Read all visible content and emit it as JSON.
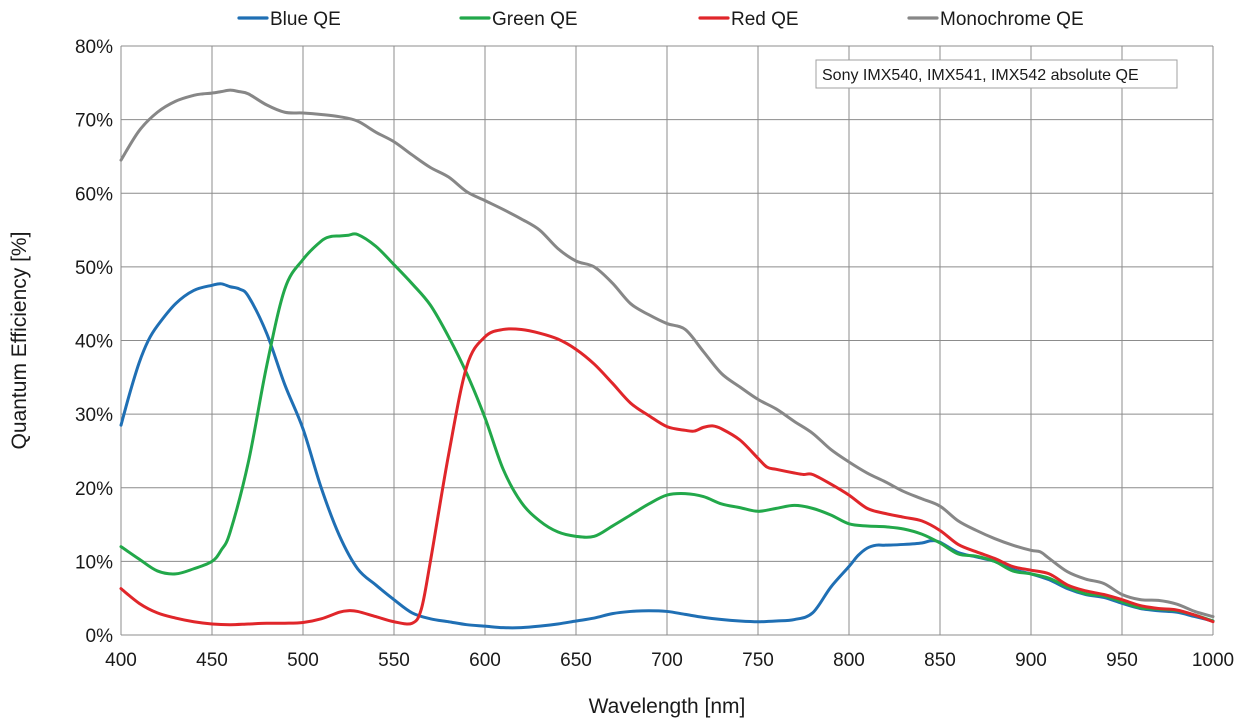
{
  "chart_data": {
    "type": "line",
    "title": "",
    "xlabel": "Wavelength [nm]",
    "ylabel": "Quantum Efficiency [%]",
    "xlim": [
      400,
      1000
    ],
    "ylim": [
      0,
      80
    ],
    "xticks": [
      400,
      450,
      500,
      550,
      600,
      650,
      700,
      750,
      800,
      850,
      900,
      950,
      1000
    ],
    "yticks": [
      0,
      10,
      20,
      30,
      40,
      50,
      60,
      70,
      80
    ],
    "ytick_suffix": "%",
    "grid": true,
    "legend_position": "top",
    "annotation": "Sony IMX540, IMX541, IMX542 absolute QE",
    "series": [
      {
        "name": "Blue QE",
        "color": "#1f6fb4",
        "x": [
          400,
          405,
          410,
          415,
          420,
          430,
          440,
          450,
          455,
          460,
          465,
          470,
          480,
          490,
          500,
          510,
          520,
          530,
          540,
          550,
          560,
          570,
          580,
          590,
          600,
          610,
          620,
          630,
          640,
          650,
          660,
          670,
          680,
          690,
          700,
          710,
          720,
          730,
          740,
          750,
          760,
          770,
          780,
          790,
          800,
          805,
          810,
          815,
          820,
          830,
          840,
          845,
          850,
          860,
          870,
          880,
          890,
          900,
          910,
          920,
          930,
          940,
          950,
          960,
          970,
          980,
          990,
          1000
        ],
        "y": [
          28.5,
          33,
          37,
          40,
          42,
          45,
          46.8,
          47.5,
          47.7,
          47.3,
          47,
          46,
          41,
          34,
          28,
          20,
          13.5,
          9,
          6.8,
          4.8,
          3,
          2.2,
          1.8,
          1.4,
          1.2,
          1.0,
          1.0,
          1.2,
          1.5,
          1.9,
          2.3,
          2.9,
          3.2,
          3.3,
          3.2,
          2.8,
          2.4,
          2.1,
          1.9,
          1.8,
          1.9,
          2.1,
          3.0,
          6.5,
          9.3,
          10.8,
          11.8,
          12.2,
          12.2,
          12.3,
          12.5,
          12.8,
          12.6,
          11.2,
          10.6,
          10.0,
          8.9,
          8.3,
          7.5,
          6.3,
          5.5,
          5.1,
          4.3,
          3.6,
          3.3,
          3.1,
          2.5,
          1.9
        ]
      },
      {
        "name": "Green QE",
        "color": "#22a84a",
        "x": [
          400,
          410,
          420,
          430,
          440,
          450,
          455,
          460,
          470,
          480,
          490,
          500,
          510,
          515,
          520,
          525,
          530,
          540,
          550,
          560,
          570,
          580,
          590,
          600,
          610,
          620,
          630,
          640,
          650,
          660,
          670,
          680,
          690,
          700,
          710,
          720,
          730,
          740,
          750,
          760,
          770,
          780,
          790,
          800,
          810,
          820,
          830,
          840,
          850,
          860,
          870,
          880,
          890,
          900,
          910,
          920,
          930,
          940,
          950,
          960,
          970,
          980,
          990,
          1000
        ],
        "y": [
          12,
          10.3,
          8.7,
          8.3,
          9,
          10,
          11.5,
          14,
          23.5,
          36.5,
          47,
          51,
          53.5,
          54.1,
          54.2,
          54.3,
          54.4,
          52.8,
          50.3,
          47.7,
          44.8,
          40.5,
          35.5,
          29.5,
          22.5,
          18,
          15.5,
          14,
          13.4,
          13.4,
          14.8,
          16.3,
          17.8,
          19,
          19.2,
          18.8,
          17.8,
          17.3,
          16.8,
          17.2,
          17.6,
          17.2,
          16.3,
          15.1,
          14.8,
          14.7,
          14.4,
          13.7,
          12.5,
          11.0,
          10.7,
          10.0,
          8.7,
          8.3,
          7.7,
          6.5,
          5.6,
          5.3,
          4.5,
          3.7,
          3.5,
          3.3,
          2.7,
          1.9
        ]
      },
      {
        "name": "Red QE",
        "color": "#e0262a",
        "x": [
          400,
          410,
          420,
          430,
          440,
          450,
          460,
          470,
          480,
          490,
          500,
          510,
          520,
          525,
          530,
          540,
          550,
          560,
          565,
          570,
          580,
          590,
          600,
          610,
          620,
          630,
          640,
          650,
          660,
          670,
          680,
          690,
          700,
          710,
          715,
          720,
          725,
          730,
          740,
          750,
          755,
          760,
          770,
          775,
          780,
          790,
          800,
          810,
          820,
          830,
          840,
          850,
          860,
          870,
          880,
          890,
          900,
          910,
          920,
          930,
          940,
          950,
          960,
          970,
          980,
          990,
          1000
        ],
        "y": [
          6.3,
          4.3,
          3,
          2.3,
          1.8,
          1.5,
          1.4,
          1.5,
          1.6,
          1.6,
          1.7,
          2.2,
          3.1,
          3.3,
          3.2,
          2.5,
          1.8,
          1.6,
          3.5,
          10,
          24.5,
          36.5,
          40.5,
          41.5,
          41.5,
          41,
          40.2,
          38.8,
          36.8,
          34.2,
          31.5,
          29.8,
          28.3,
          27.8,
          27.7,
          28.2,
          28.4,
          28,
          26.5,
          24,
          22.8,
          22.5,
          22,
          21.8,
          21.8,
          20.5,
          19,
          17.2,
          16.5,
          16,
          15.5,
          14.2,
          12.3,
          11.3,
          10.4,
          9.3,
          8.8,
          8.3,
          6.8,
          6.0,
          5.5,
          4.8,
          4.0,
          3.6,
          3.4,
          2.7,
          1.8
        ]
      },
      {
        "name": "Monochrome QE",
        "color": "#878787",
        "x": [
          400,
          410,
          420,
          430,
          440,
          445,
          450,
          455,
          460,
          465,
          470,
          480,
          490,
          500,
          510,
          520,
          530,
          540,
          550,
          560,
          570,
          580,
          590,
          600,
          610,
          620,
          630,
          640,
          650,
          660,
          670,
          680,
          690,
          700,
          710,
          720,
          730,
          740,
          750,
          760,
          770,
          780,
          790,
          800,
          810,
          820,
          830,
          840,
          850,
          860,
          870,
          880,
          890,
          900,
          905,
          910,
          920,
          930,
          940,
          950,
          960,
          970,
          980,
          990,
          1000
        ],
        "y": [
          64.5,
          68.5,
          71,
          72.5,
          73.3,
          73.5,
          73.6,
          73.8,
          74,
          73.8,
          73.5,
          72,
          71,
          70.9,
          70.7,
          70.4,
          69.8,
          68.3,
          67,
          65.2,
          63.5,
          62.2,
          60.2,
          59,
          57.8,
          56.5,
          55,
          52.5,
          50.8,
          50,
          47.8,
          45,
          43.5,
          42.3,
          41.5,
          38.5,
          35.5,
          33.7,
          32,
          30.7,
          29,
          27.4,
          25.2,
          23.5,
          22,
          20.8,
          19.5,
          18.5,
          17.5,
          15.5,
          14.2,
          13.1,
          12.2,
          11.5,
          11.3,
          10.4,
          8.6,
          7.6,
          7.0,
          5.5,
          4.8,
          4.7,
          4.2,
          3.2,
          2.5
        ]
      }
    ]
  }
}
